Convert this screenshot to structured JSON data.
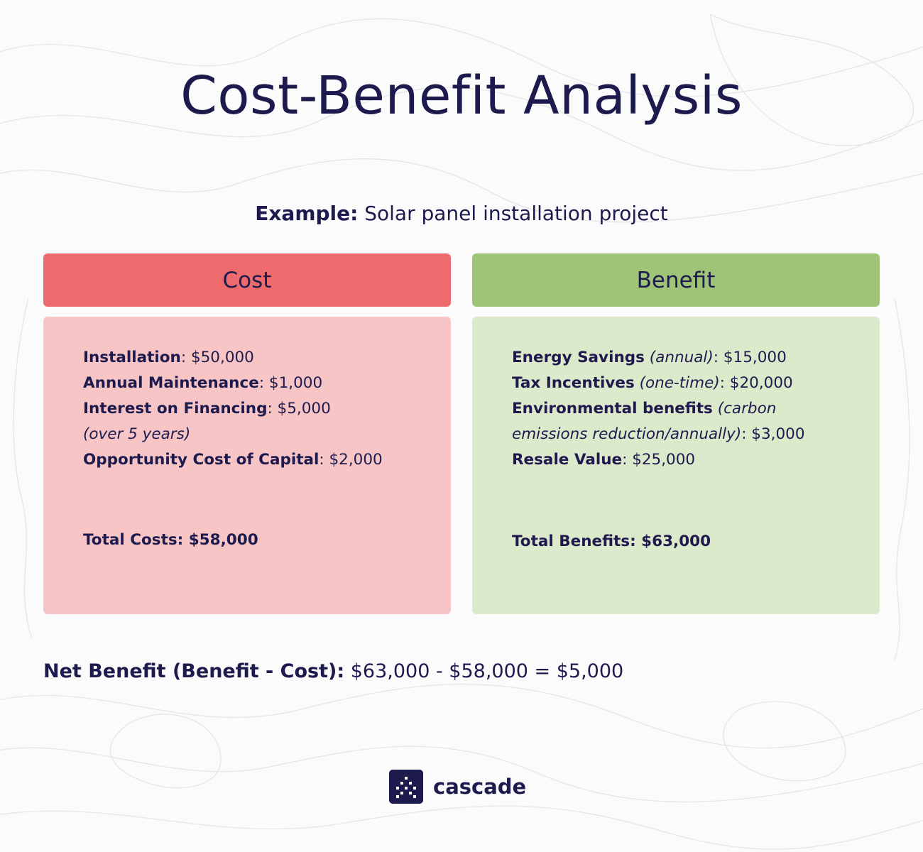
{
  "title": "Cost-Benefit Analysis",
  "subtitle": {
    "label": "Example:",
    "text": " Solar panel installation project"
  },
  "cost": {
    "header": "Cost",
    "items": [
      {
        "name": "Installation",
        "sep": ": ",
        "value": "$50,000"
      },
      {
        "name": "Annual Maintenance",
        "sep": ": ",
        "value": "$1,000"
      },
      {
        "name": "Interest on Financing",
        "sep": ": ",
        "value": "$5,000",
        "note": "(over 5 years)"
      },
      {
        "name": "Opportunity Cost of Capital",
        "sep": ": ",
        "value": "$2,000"
      }
    ],
    "total": "Total Costs: $58,000"
  },
  "benefit": {
    "header": "Benefit",
    "items": [
      {
        "name": "Energy Savings",
        "qualifier": "(annual)",
        "value": "$15,000"
      },
      {
        "name": "Tax Incentives",
        "qualifier": "(one-time)",
        "value": "$20,000"
      },
      {
        "name": "Environmental benefits",
        "qualifier_line1": "(carbon",
        "qualifier_line2": "emissions reduction/annually)",
        "value": "$3,000"
      },
      {
        "name": "Resale Value",
        "value": "$25,000"
      }
    ],
    "total": "Total Benefits: $63,000"
  },
  "net": {
    "label": "Net Benefit (Benefit - Cost):",
    "text": " $63,000 - $58,000 = $5,000"
  },
  "logo": {
    "text": "cascade",
    "icon": "cascade-logo-icon"
  },
  "colors": {
    "navy": "#1d1b4e",
    "cost_header": "#ee6b6d",
    "cost_box": "#f7c5c5",
    "benefit_header": "#a0c477",
    "benefit_box": "#dce9cb"
  }
}
